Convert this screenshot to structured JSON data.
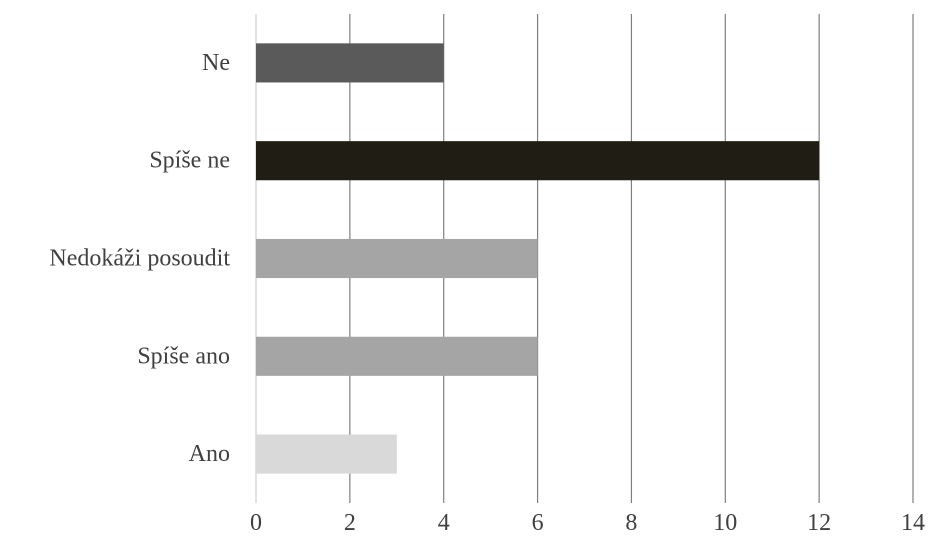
{
  "chart_data": {
    "type": "bar",
    "orientation": "horizontal",
    "categories": [
      "Ne",
      "Spíše ne",
      "Nedokáži posoudit",
      "Spíše ano",
      "Ano"
    ],
    "values": [
      4,
      12,
      6,
      6,
      3
    ],
    "bar_colors": [
      "#5a5a5a",
      "#1f1d14",
      "#a5a5a5",
      "#a5a5a5",
      "#d9d9d9"
    ],
    "xlim": [
      0,
      14
    ],
    "xticks": [
      "0",
      "2",
      "4",
      "6",
      "8",
      "10",
      "12",
      "14"
    ],
    "grid": "vertical",
    "gridline_color": "#7f7f7f",
    "title": "",
    "xlabel": "",
    "ylabel": ""
  }
}
